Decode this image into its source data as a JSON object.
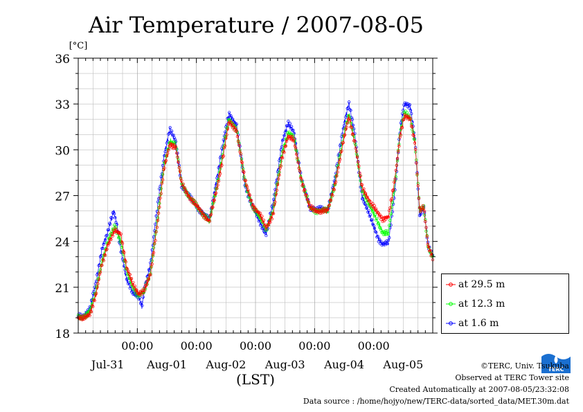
{
  "chart_data": {
    "type": "line",
    "title": "Air Temperature / 2007-08-05",
    "ylabel": "[°C]",
    "xlabel": "(LST)",
    "ylim": [
      18,
      36
    ],
    "yticks": [
      18,
      21,
      24,
      27,
      30,
      33,
      36
    ],
    "xlim_days": [
      0,
      6
    ],
    "time_ticks": [
      "00:00",
      "00:00",
      "00:00",
      "00:00",
      "00:00"
    ],
    "date_labels": [
      "Jul-31",
      "Aug-01",
      "Aug-02",
      "Aug-03",
      "Aug-04",
      "Aug-05"
    ],
    "grid": true,
    "legend_position": "right",
    "series": [
      {
        "name": "at 29.5 m",
        "color": "#ff0000",
        "keypoints": [
          [
            0.0,
            19.0
          ],
          [
            0.08,
            18.9
          ],
          [
            0.2,
            19.3
          ],
          [
            0.3,
            20.5
          ],
          [
            0.4,
            22.5
          ],
          [
            0.5,
            23.8
          ],
          [
            0.62,
            24.7
          ],
          [
            0.72,
            24.5
          ],
          [
            0.82,
            22.3
          ],
          [
            0.92,
            21.2
          ],
          [
            1.02,
            20.6
          ],
          [
            1.12,
            20.8
          ],
          [
            1.22,
            21.8
          ],
          [
            1.35,
            25.5
          ],
          [
            1.45,
            28.7
          ],
          [
            1.55,
            30.4
          ],
          [
            1.65,
            30.2
          ],
          [
            1.75,
            27.8
          ],
          [
            1.9,
            26.8
          ],
          [
            2.05,
            26.1
          ],
          [
            2.22,
            25.3
          ],
          [
            2.35,
            27.5
          ],
          [
            2.48,
            30.2
          ],
          [
            2.55,
            31.8
          ],
          [
            2.68,
            31.3
          ],
          [
            2.82,
            28.0
          ],
          [
            2.95,
            26.4
          ],
          [
            3.08,
            25.7
          ],
          [
            3.18,
            24.9
          ],
          [
            3.3,
            25.8
          ],
          [
            3.45,
            29.5
          ],
          [
            3.55,
            30.9
          ],
          [
            3.65,
            30.6
          ],
          [
            3.78,
            28.0
          ],
          [
            3.92,
            26.2
          ],
          [
            4.05,
            26.0
          ],
          [
            4.22,
            26.0
          ],
          [
            4.35,
            27.8
          ],
          [
            4.48,
            30.4
          ],
          [
            4.58,
            32.2
          ],
          [
            4.68,
            30.5
          ],
          [
            4.8,
            27.6
          ],
          [
            4.95,
            26.5
          ],
          [
            5.08,
            25.8
          ],
          [
            5.15,
            25.5
          ],
          [
            5.25,
            25.6
          ],
          [
            5.35,
            27.8
          ],
          [
            5.45,
            31.0
          ],
          [
            5.52,
            32.2
          ],
          [
            5.62,
            32.0
          ],
          [
            5.7,
            30.5
          ],
          [
            5.78,
            26.0
          ],
          [
            5.85,
            26.2
          ],
          [
            5.92,
            23.7
          ],
          [
            6.0,
            23.0
          ]
        ]
      },
      {
        "name": "at 12.3 m",
        "color": "#00ff00",
        "keypoints": [
          [
            0.0,
            19.0
          ],
          [
            0.08,
            19.0
          ],
          [
            0.2,
            19.5
          ],
          [
            0.3,
            20.7
          ],
          [
            0.4,
            22.7
          ],
          [
            0.5,
            24.0
          ],
          [
            0.62,
            25.0
          ],
          [
            0.72,
            24.0
          ],
          [
            0.82,
            22.0
          ],
          [
            0.92,
            21.0
          ],
          [
            1.02,
            20.5
          ],
          [
            1.12,
            20.7
          ],
          [
            1.22,
            21.9
          ],
          [
            1.35,
            25.7
          ],
          [
            1.45,
            28.9
          ],
          [
            1.55,
            30.6
          ],
          [
            1.65,
            30.3
          ],
          [
            1.75,
            27.8
          ],
          [
            1.9,
            26.8
          ],
          [
            2.05,
            26.1
          ],
          [
            2.22,
            25.3
          ],
          [
            2.35,
            27.7
          ],
          [
            2.48,
            30.5
          ],
          [
            2.55,
            32.0
          ],
          [
            2.68,
            31.4
          ],
          [
            2.82,
            27.9
          ],
          [
            2.95,
            26.3
          ],
          [
            3.08,
            25.5
          ],
          [
            3.18,
            24.8
          ],
          [
            3.3,
            26.0
          ],
          [
            3.45,
            29.8
          ],
          [
            3.55,
            31.1
          ],
          [
            3.65,
            30.8
          ],
          [
            3.78,
            28.0
          ],
          [
            3.92,
            26.2
          ],
          [
            4.05,
            26.0
          ],
          [
            4.22,
            26.0
          ],
          [
            4.35,
            27.9
          ],
          [
            4.48,
            30.7
          ],
          [
            4.58,
            32.4
          ],
          [
            4.68,
            30.5
          ],
          [
            4.8,
            27.4
          ],
          [
            4.95,
            26.2
          ],
          [
            5.08,
            25.2
          ],
          [
            5.15,
            24.6
          ],
          [
            5.25,
            24.5
          ],
          [
            5.35,
            27.5
          ],
          [
            5.45,
            31.2
          ],
          [
            5.52,
            32.4
          ],
          [
            5.62,
            32.1
          ],
          [
            5.7,
            30.5
          ],
          [
            5.78,
            26.0
          ],
          [
            5.85,
            26.2
          ],
          [
            5.92,
            23.7
          ],
          [
            6.0,
            23.0
          ]
        ]
      },
      {
        "name": "at 1.6 m",
        "color": "#0000ff",
        "keypoints": [
          [
            0.0,
            19.1
          ],
          [
            0.08,
            19.1
          ],
          [
            0.2,
            19.6
          ],
          [
            0.3,
            21.3
          ],
          [
            0.4,
            23.5
          ],
          [
            0.5,
            24.6
          ],
          [
            0.6,
            26.0
          ],
          [
            0.66,
            25.0
          ],
          [
            0.72,
            23.5
          ],
          [
            0.82,
            21.5
          ],
          [
            0.92,
            20.7
          ],
          [
            1.02,
            20.4
          ],
          [
            1.08,
            19.7
          ],
          [
            1.12,
            20.9
          ],
          [
            1.22,
            22.5
          ],
          [
            1.35,
            26.5
          ],
          [
            1.45,
            29.5
          ],
          [
            1.55,
            31.4
          ],
          [
            1.65,
            30.5
          ],
          [
            1.75,
            27.7
          ],
          [
            1.9,
            26.8
          ],
          [
            2.05,
            26.1
          ],
          [
            2.22,
            25.4
          ],
          [
            2.35,
            28.2
          ],
          [
            2.48,
            31.0
          ],
          [
            2.55,
            32.4
          ],
          [
            2.68,
            31.6
          ],
          [
            2.82,
            27.7
          ],
          [
            2.95,
            26.3
          ],
          [
            3.08,
            25.2
          ],
          [
            3.18,
            24.5
          ],
          [
            3.3,
            26.5
          ],
          [
            3.45,
            30.5
          ],
          [
            3.55,
            31.7
          ],
          [
            3.65,
            31.2
          ],
          [
            3.78,
            28.0
          ],
          [
            3.92,
            26.2
          ],
          [
            4.05,
            26.1
          ],
          [
            4.22,
            26.1
          ],
          [
            4.35,
            28.2
          ],
          [
            4.48,
            31.3
          ],
          [
            4.58,
            33.1
          ],
          [
            4.68,
            31.0
          ],
          [
            4.8,
            27.0
          ],
          [
            4.95,
            25.5
          ],
          [
            5.08,
            24.2
          ],
          [
            5.15,
            23.8
          ],
          [
            5.25,
            23.9
          ],
          [
            5.35,
            27.0
          ],
          [
            5.45,
            31.4
          ],
          [
            5.52,
            33.0
          ],
          [
            5.62,
            32.9
          ],
          [
            5.7,
            30.6
          ],
          [
            5.78,
            25.6
          ],
          [
            5.85,
            26.3
          ],
          [
            5.92,
            23.8
          ],
          [
            6.0,
            23.0
          ]
        ]
      }
    ]
  },
  "footer": {
    "copyright": "©TERC, Univ. Tsukuba",
    "observed": "Observed at TERC Tower site",
    "created": "Created Automatically at 2007-08-05/23:32:08",
    "source": "Data source : /home/hojyo/new/TERC-data/sorted_data/MET.30m.dat"
  },
  "logo": {
    "text": "TERC",
    "color": "#1a6fd0"
  }
}
